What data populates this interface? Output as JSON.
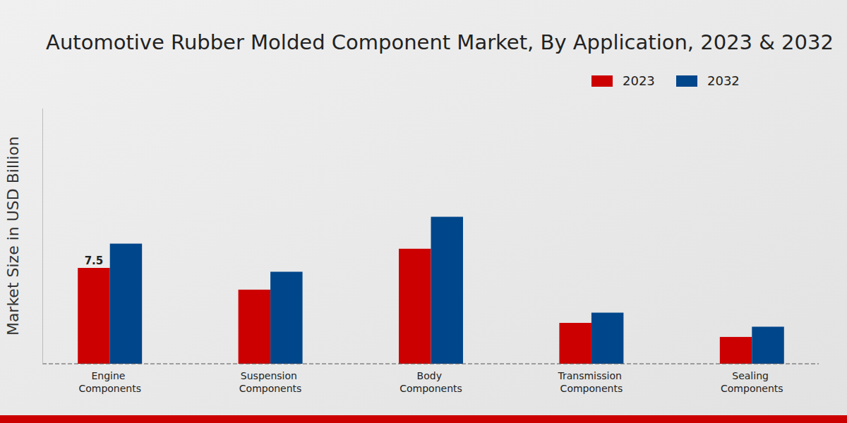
{
  "chart_data": {
    "type": "bar",
    "title": "Automotive Rubber Molded Component Market, By Application, 2023 & 2032",
    "y_label": "Market Size in USD Billion",
    "categories": [
      "Engine Components",
      "Suspension Components",
      "Body Components",
      "Transmission Components",
      "Sealing Components"
    ],
    "series": [
      {
        "name": "2023",
        "color": "#cc0000",
        "values": [
          7.5,
          5.8,
          9.0,
          3.2,
          2.1
        ],
        "value_labels": [
          "7.5",
          null,
          null,
          null,
          null
        ]
      },
      {
        "name": "2032",
        "color": "#00468b",
        "values": [
          9.4,
          7.2,
          11.5,
          4.0,
          2.9
        ]
      }
    ],
    "ylim": [
      0,
      20
    ],
    "legend": "top-right",
    "grid": false,
    "tick_labels": "x"
  }
}
